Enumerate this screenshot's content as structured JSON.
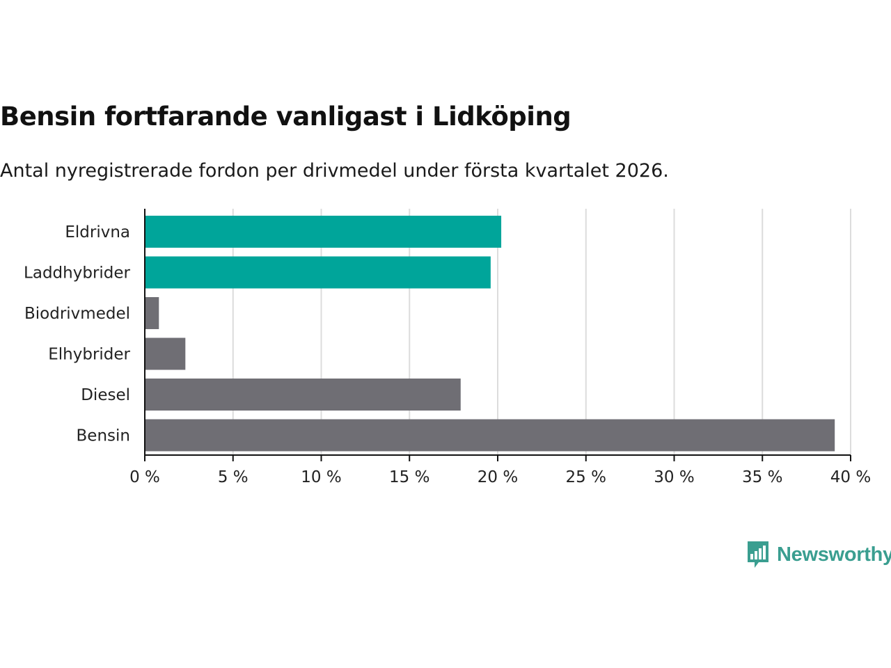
{
  "title": "Bensin fortfarande vanligast i Lidköping",
  "subtitle": "Antal nyregistrerade fordon per drivmedel under första kvartalet 2026.",
  "brand": {
    "name": "Newsworthy",
    "color": "#3a9e90",
    "icon": "bar-chart-speech-bubble-icon"
  },
  "chart_data": {
    "type": "bar",
    "orientation": "horizontal",
    "categories": [
      "Eldrivna",
      "Laddhybrider",
      "Biodrivmedel",
      "Elhybrider",
      "Diesel",
      "Bensin"
    ],
    "values": [
      20.2,
      19.6,
      0.8,
      2.3,
      17.9,
      39.1
    ],
    "colors": [
      "#00a59a",
      "#00a59a",
      "#6f6e74",
      "#6f6e74",
      "#6f6e74",
      "#6f6e74"
    ],
    "xlim": [
      0,
      40
    ],
    "xticks": [
      0,
      5,
      10,
      15,
      20,
      25,
      30,
      35,
      40
    ],
    "tick_labels": [
      "0 %",
      "5 %",
      "10 %",
      "15 %",
      "20 %",
      "25 %",
      "30 %",
      "35 %",
      "40 %"
    ],
    "grid": true,
    "xlabel": "",
    "ylabel": ""
  }
}
